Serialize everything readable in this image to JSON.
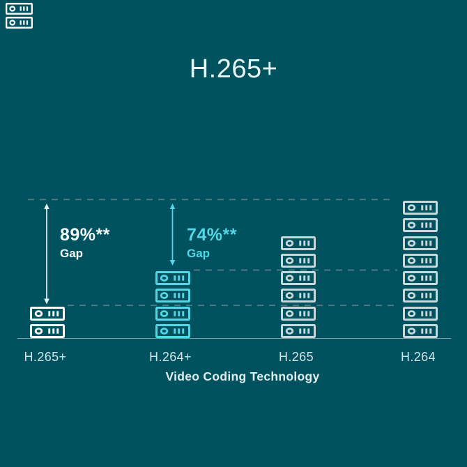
{
  "title": "H.265+",
  "logo": {
    "icon": "server-stack-icon",
    "units": 2
  },
  "chart_data": {
    "type": "bar",
    "title": "H.265+",
    "xlabel": "Video Coding Technology",
    "ylabel": "",
    "categories": [
      "H.265+",
      "H.264+",
      "H.265",
      "H.264"
    ],
    "values": [
      2,
      4,
      6,
      8
    ],
    "value_unit": "stacked server/storage icons",
    "bar_colors": [
      "#F8FCFC",
      "#54D6E6",
      "#C9D9DB",
      "#C9D9DB"
    ],
    "ylim": [
      0,
      8
    ],
    "grid": "off",
    "legend": "none",
    "reference_lines": [
      {
        "at_value": 8,
        "style": "dashed"
      },
      {
        "at_value": 4,
        "style": "dashed"
      },
      {
        "at_value": 2,
        "style": "dashed"
      }
    ],
    "annotations": [
      {
        "category": "H.265+",
        "label": "89%**",
        "sublabel": "Gap",
        "color": "#F4FBFB"
      },
      {
        "category": "H.264+",
        "label": "74%**",
        "sublabel": "Gap",
        "color": "#54D6E6"
      }
    ]
  },
  "colors": {
    "background": "#00525F",
    "dashed_line": "#4D7A82",
    "axis_line": "#9AAEB3",
    "axis_label": "#D3E3E5",
    "title_text": "#EAF5F6",
    "xlabel_text": "#DFEFEF",
    "white_arrow": "#E6F2F2",
    "logo_color": "#F8FCFC"
  }
}
